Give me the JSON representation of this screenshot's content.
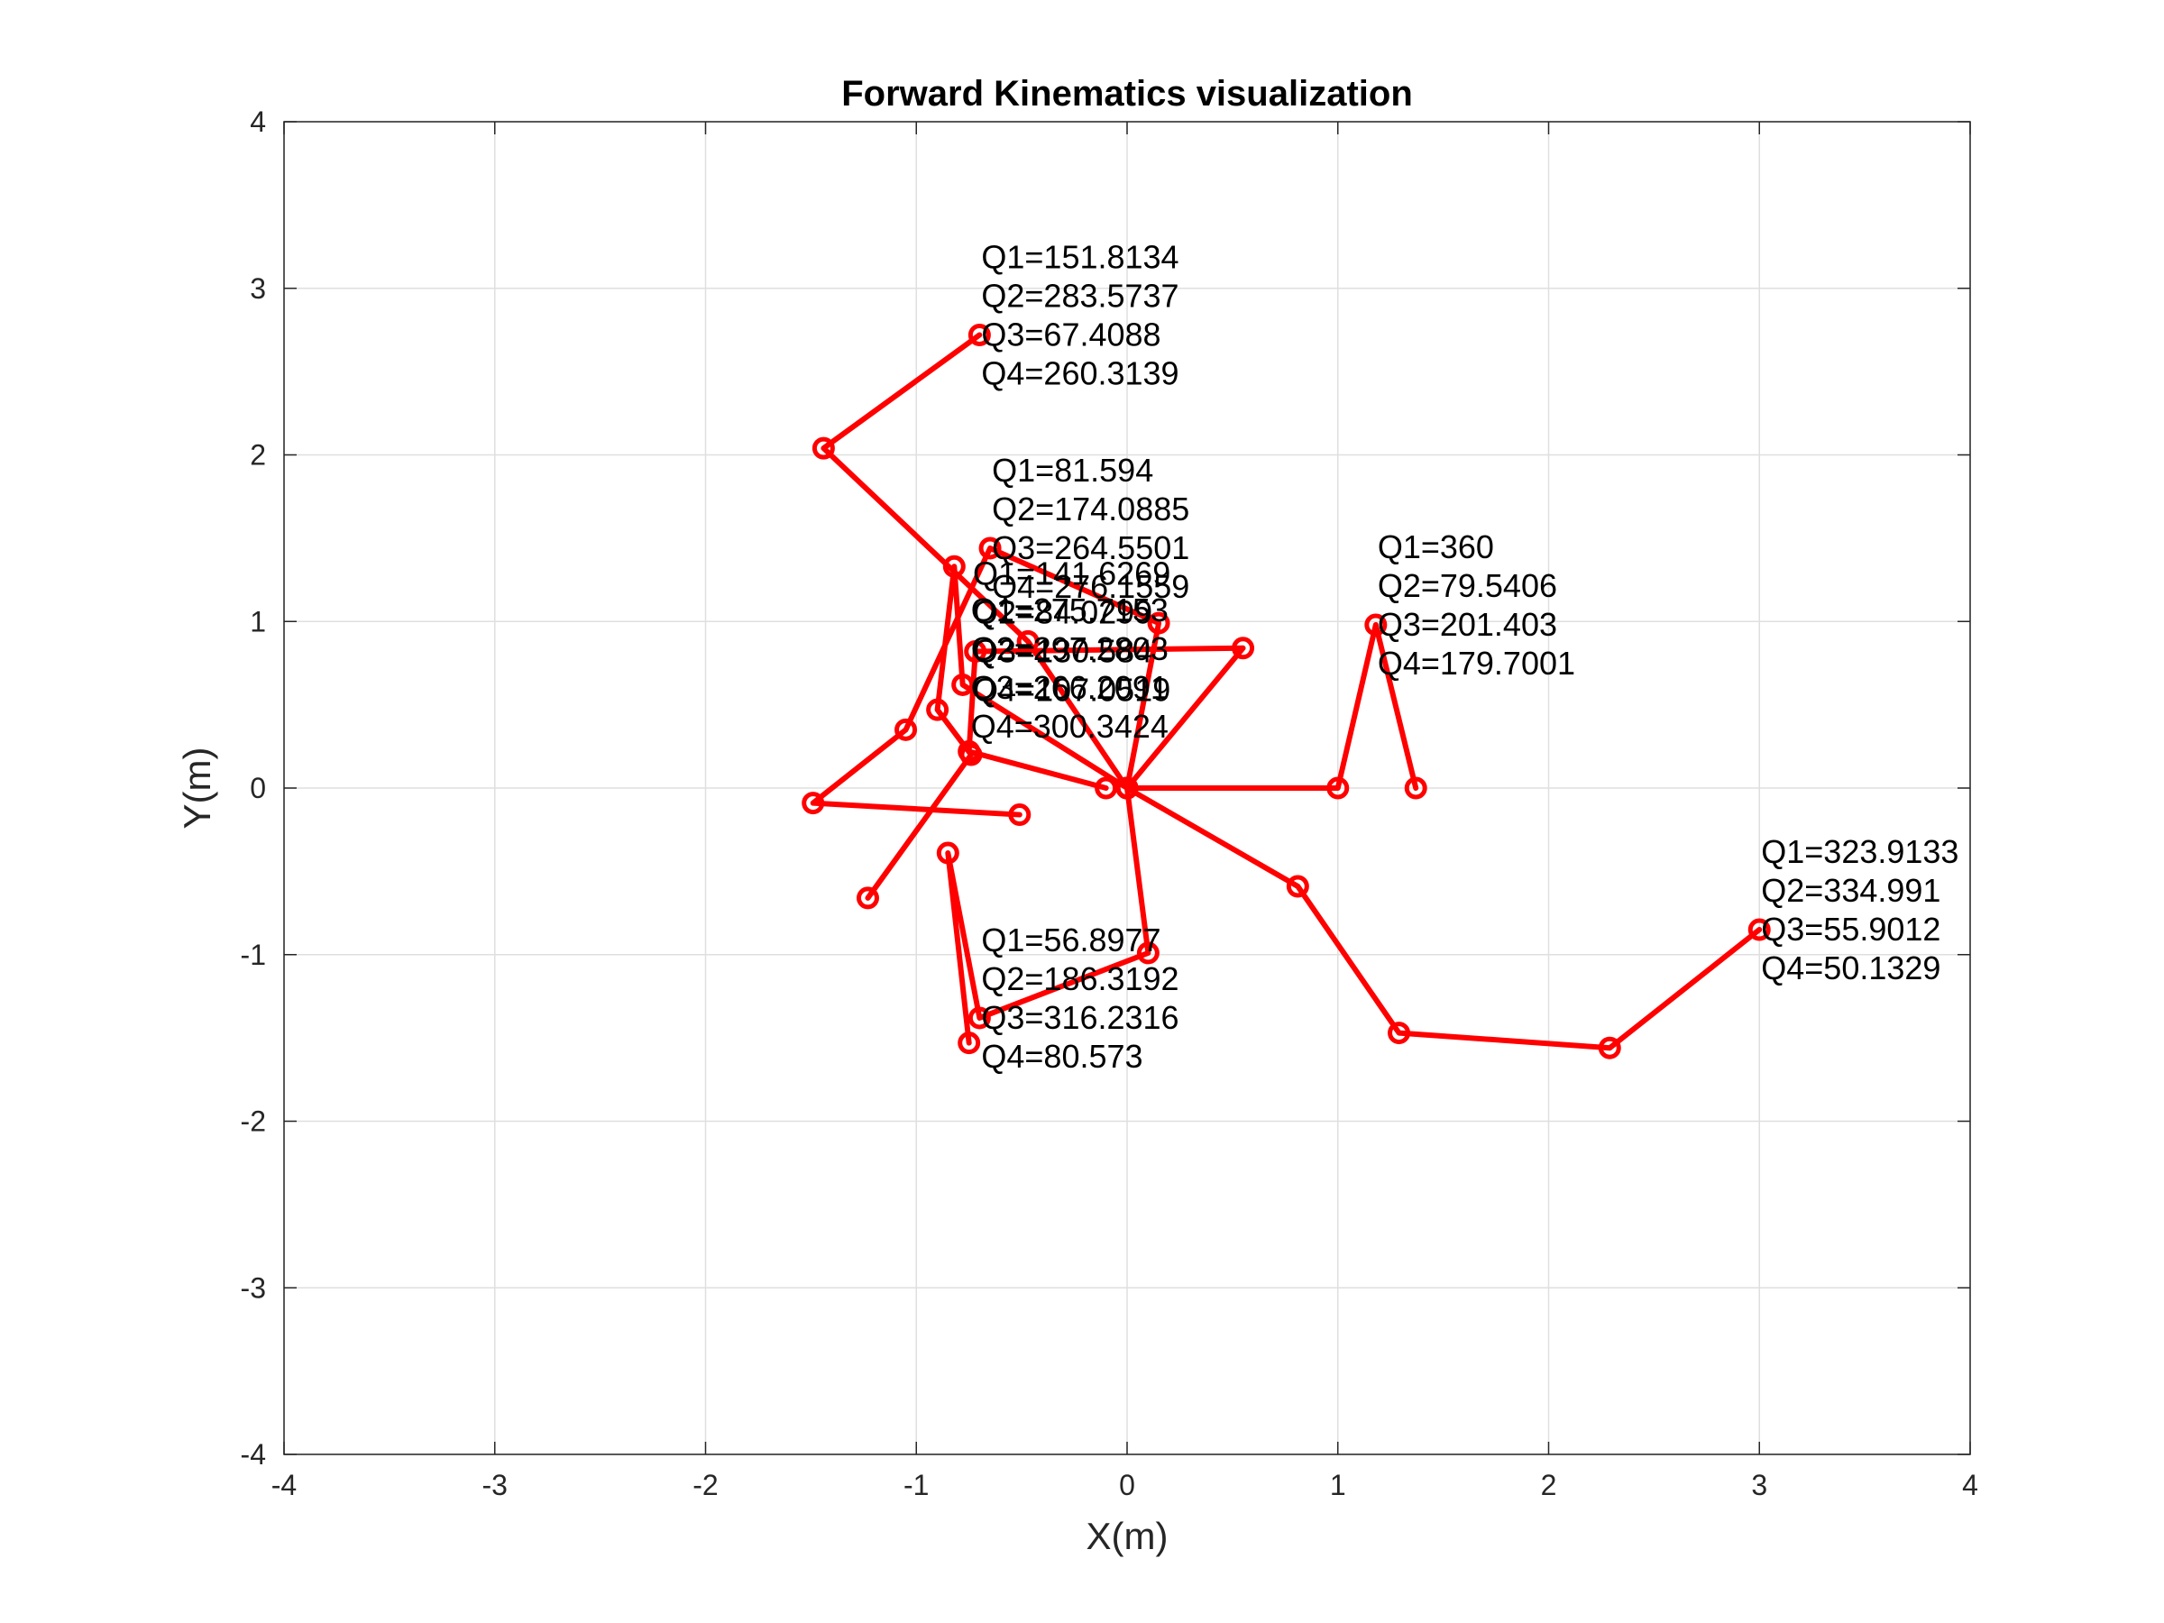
{
  "colors": {
    "series": "#ff0000",
    "grid": "#dfdfdf",
    "axis": "#262626"
  },
  "chart_data": {
    "type": "line",
    "title": "Forward Kinematics visualization",
    "xlabel": "X(m)",
    "ylabel": "Y(m)",
    "xlim": [
      -4,
      4
    ],
    "ylim": [
      -4,
      4
    ],
    "xticks": [
      -4,
      -3,
      -2,
      -1,
      0,
      1,
      2,
      3,
      4
    ],
    "yticks": [
      -4,
      -3,
      -2,
      -1,
      0,
      1,
      2,
      3,
      4
    ],
    "grid": true,
    "marker": "circle",
    "series": [
      {
        "points": [
          [
            0,
            0
          ],
          [
            0.81,
            -0.59
          ],
          [
            1.29,
            -1.47
          ],
          [
            2.29,
            -1.56
          ],
          [
            3.0,
            -0.85
          ]
        ],
        "label_pos": [
          3.0,
          -0.85
        ],
        "labels": [
          "Q1=323.9133",
          "Q2=334.991",
          "Q3=55.9012",
          "Q4=50.1329"
        ]
      },
      {
        "points": [
          [
            0,
            0
          ],
          [
            1.0,
            0
          ],
          [
            1.18,
            0.98
          ],
          [
            1.37,
            0.0
          ]
        ],
        "label_pos": [
          1.18,
          0.98
        ],
        "labels": [
          "Q1=360",
          "Q2=79.5406",
          "Q3=201.403",
          "Q4=179.7001"
        ]
      },
      {
        "points": [
          [
            0,
            0
          ],
          [
            -0.47,
            0.88
          ],
          [
            -1.44,
            2.04
          ],
          [
            -0.7,
            2.72
          ]
        ],
        "label_pos": [
          -0.7,
          2.72
        ],
        "labels": [
          "Q1=151.8134",
          "Q2=283.5737",
          "Q3=67.4088",
          "Q4=260.3139"
        ]
      },
      {
        "points": [
          [
            0,
            0
          ],
          [
            0.15,
            0.99
          ],
          [
            -0.65,
            1.44
          ],
          [
            -1.05,
            0.35
          ],
          [
            -1.49,
            -0.09
          ],
          [
            -0.51,
            -0.16
          ]
        ],
        "label_pos": [
          -0.65,
          1.44
        ],
        "labels": [
          "Q1=81.594",
          "Q2=174.0885",
          "Q3=264.5501",
          "Q4=276.1559"
        ]
      },
      {
        "points": [
          [
            0,
            0
          ],
          [
            -0.78,
            0.62
          ],
          [
            -0.82,
            1.33
          ],
          [
            -0.9,
            0.47
          ],
          [
            -0.74,
            0.2
          ],
          [
            -1.23,
            -0.66
          ]
        ],
        "label_pos": [
          -0.74,
          0.82
        ],
        "labels": [
          "Q1=141.6269",
          "Q2=84.0299",
          "Q3=130.584",
          "Q4=107.0519"
        ]
      },
      {
        "points": [
          [
            0,
            0
          ],
          [
            0.55,
            0.84
          ],
          [
            -0.72,
            0.82
          ],
          [
            -0.75,
            0.22
          ],
          [
            -0.1,
            0.0
          ]
        ],
        "label_pos": [
          -0.75,
          0.6
        ],
        "labels": [
          "Q1=275.7153",
          "Q2=297.2803",
          "Q3=266.2091",
          "Q4=300.3424"
        ]
      },
      {
        "points": [
          [
            0,
            0
          ],
          [
            0.1,
            -0.99
          ],
          [
            -0.7,
            -1.38
          ],
          [
            -0.85,
            -0.39
          ],
          [
            -0.75,
            -1.53
          ]
        ],
        "label_pos": [
          -0.7,
          -1.38
        ],
        "labels": [
          "Q1=56.8977",
          "Q2=186.3192",
          "Q3=316.2316",
          "Q4=80.573"
        ]
      }
    ]
  }
}
